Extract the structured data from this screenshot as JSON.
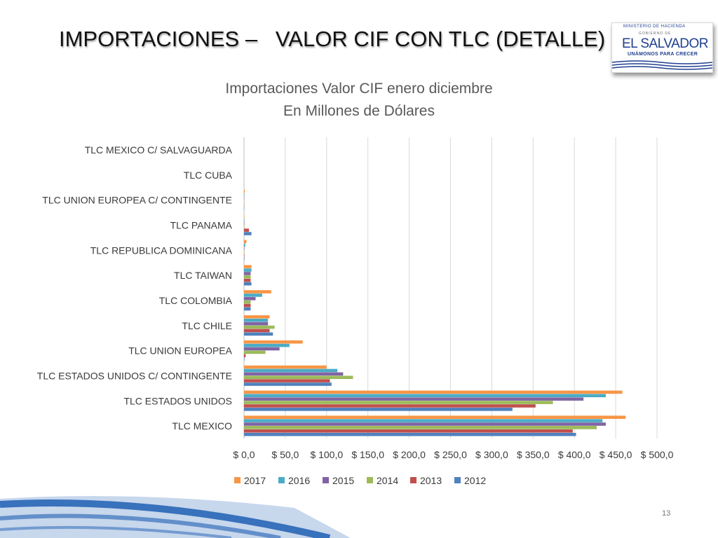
{
  "slide": {
    "title": "IMPORTACIONES –   VALOR CIF CON TLC (DETALLE)",
    "page_number": "13"
  },
  "logo": {
    "top_text": "MINISTERIO DE HACIENDA",
    "small_text": "GOBIERNO DE",
    "main_text": "EL SALVADOR",
    "sub_text": "UNÁMONOS PARA CRECER"
  },
  "colors": {
    "2017": "#f79646",
    "2016": "#4bacc6",
    "2015": "#8064a2",
    "2014": "#9bbb59",
    "2013": "#c0504d",
    "2012": "#4f81bd",
    "decor_blue": "#1f5fb4"
  },
  "chart_data": {
    "type": "bar",
    "orientation": "horizontal",
    "title": [
      "Importaciones Valor CIF enero diciembre",
      "En Millones de Dólares"
    ],
    "categories": [
      "TLC MEXICO",
      "TLC ESTADOS UNIDOS",
      "TLC ESTADOS UNIDOS C/ CONTINGENTE",
      "TLC UNION EUROPEA",
      "TLC CHILE",
      "TLC COLOMBIA",
      "TLC TAIWAN",
      "TLC REPUBLICA DOMINICANA",
      "TLC PANAMA",
      "TLC UNION EUROPEA C/ CONTINGENTE",
      "TLC CUBA",
      "TLC MEXICO C/ SALVAGUARDA"
    ],
    "series": [
      {
        "name": "2012",
        "values": [
          402,
          325,
          106,
          0.5,
          35,
          8,
          9,
          0.5,
          9,
          0.3,
          0,
          0
        ]
      },
      {
        "name": "2013",
        "values": [
          398,
          353,
          104,
          2,
          31,
          8,
          8,
          0.5,
          6,
          0.3,
          0,
          0
        ]
      },
      {
        "name": "2014",
        "values": [
          427,
          374,
          132,
          26,
          37,
          8,
          8,
          0.5,
          0.5,
          0.2,
          0,
          0
        ]
      },
      {
        "name": "2015",
        "values": [
          438,
          411,
          120,
          43,
          29,
          14,
          8,
          0.5,
          0.5,
          0.3,
          0,
          0
        ]
      },
      {
        "name": "2016",
        "values": [
          434,
          438,
          113,
          55,
          29,
          22,
          9,
          1.5,
          0.5,
          0.5,
          0,
          0
        ]
      },
      {
        "name": "2017",
        "values": [
          462,
          458,
          100,
          71,
          31,
          33,
          9,
          3,
          0.5,
          1,
          0,
          0
        ]
      }
    ],
    "legend_order": [
      "2017",
      "2016",
      "2015",
      "2014",
      "2013",
      "2012"
    ],
    "xlim": [
      0,
      500
    ],
    "xticks": [
      "$ 0,0",
      "$ 50,0",
      "$ 100,0",
      "$ 150,0",
      "$ 200,0",
      "$ 250,0",
      "$ 300,0",
      "$ 350,0",
      "$ 400,0",
      "$ 450,0",
      "$ 500,0"
    ],
    "xlabel": "",
    "ylabel": "",
    "grid": true,
    "legend_position": "bottom"
  }
}
